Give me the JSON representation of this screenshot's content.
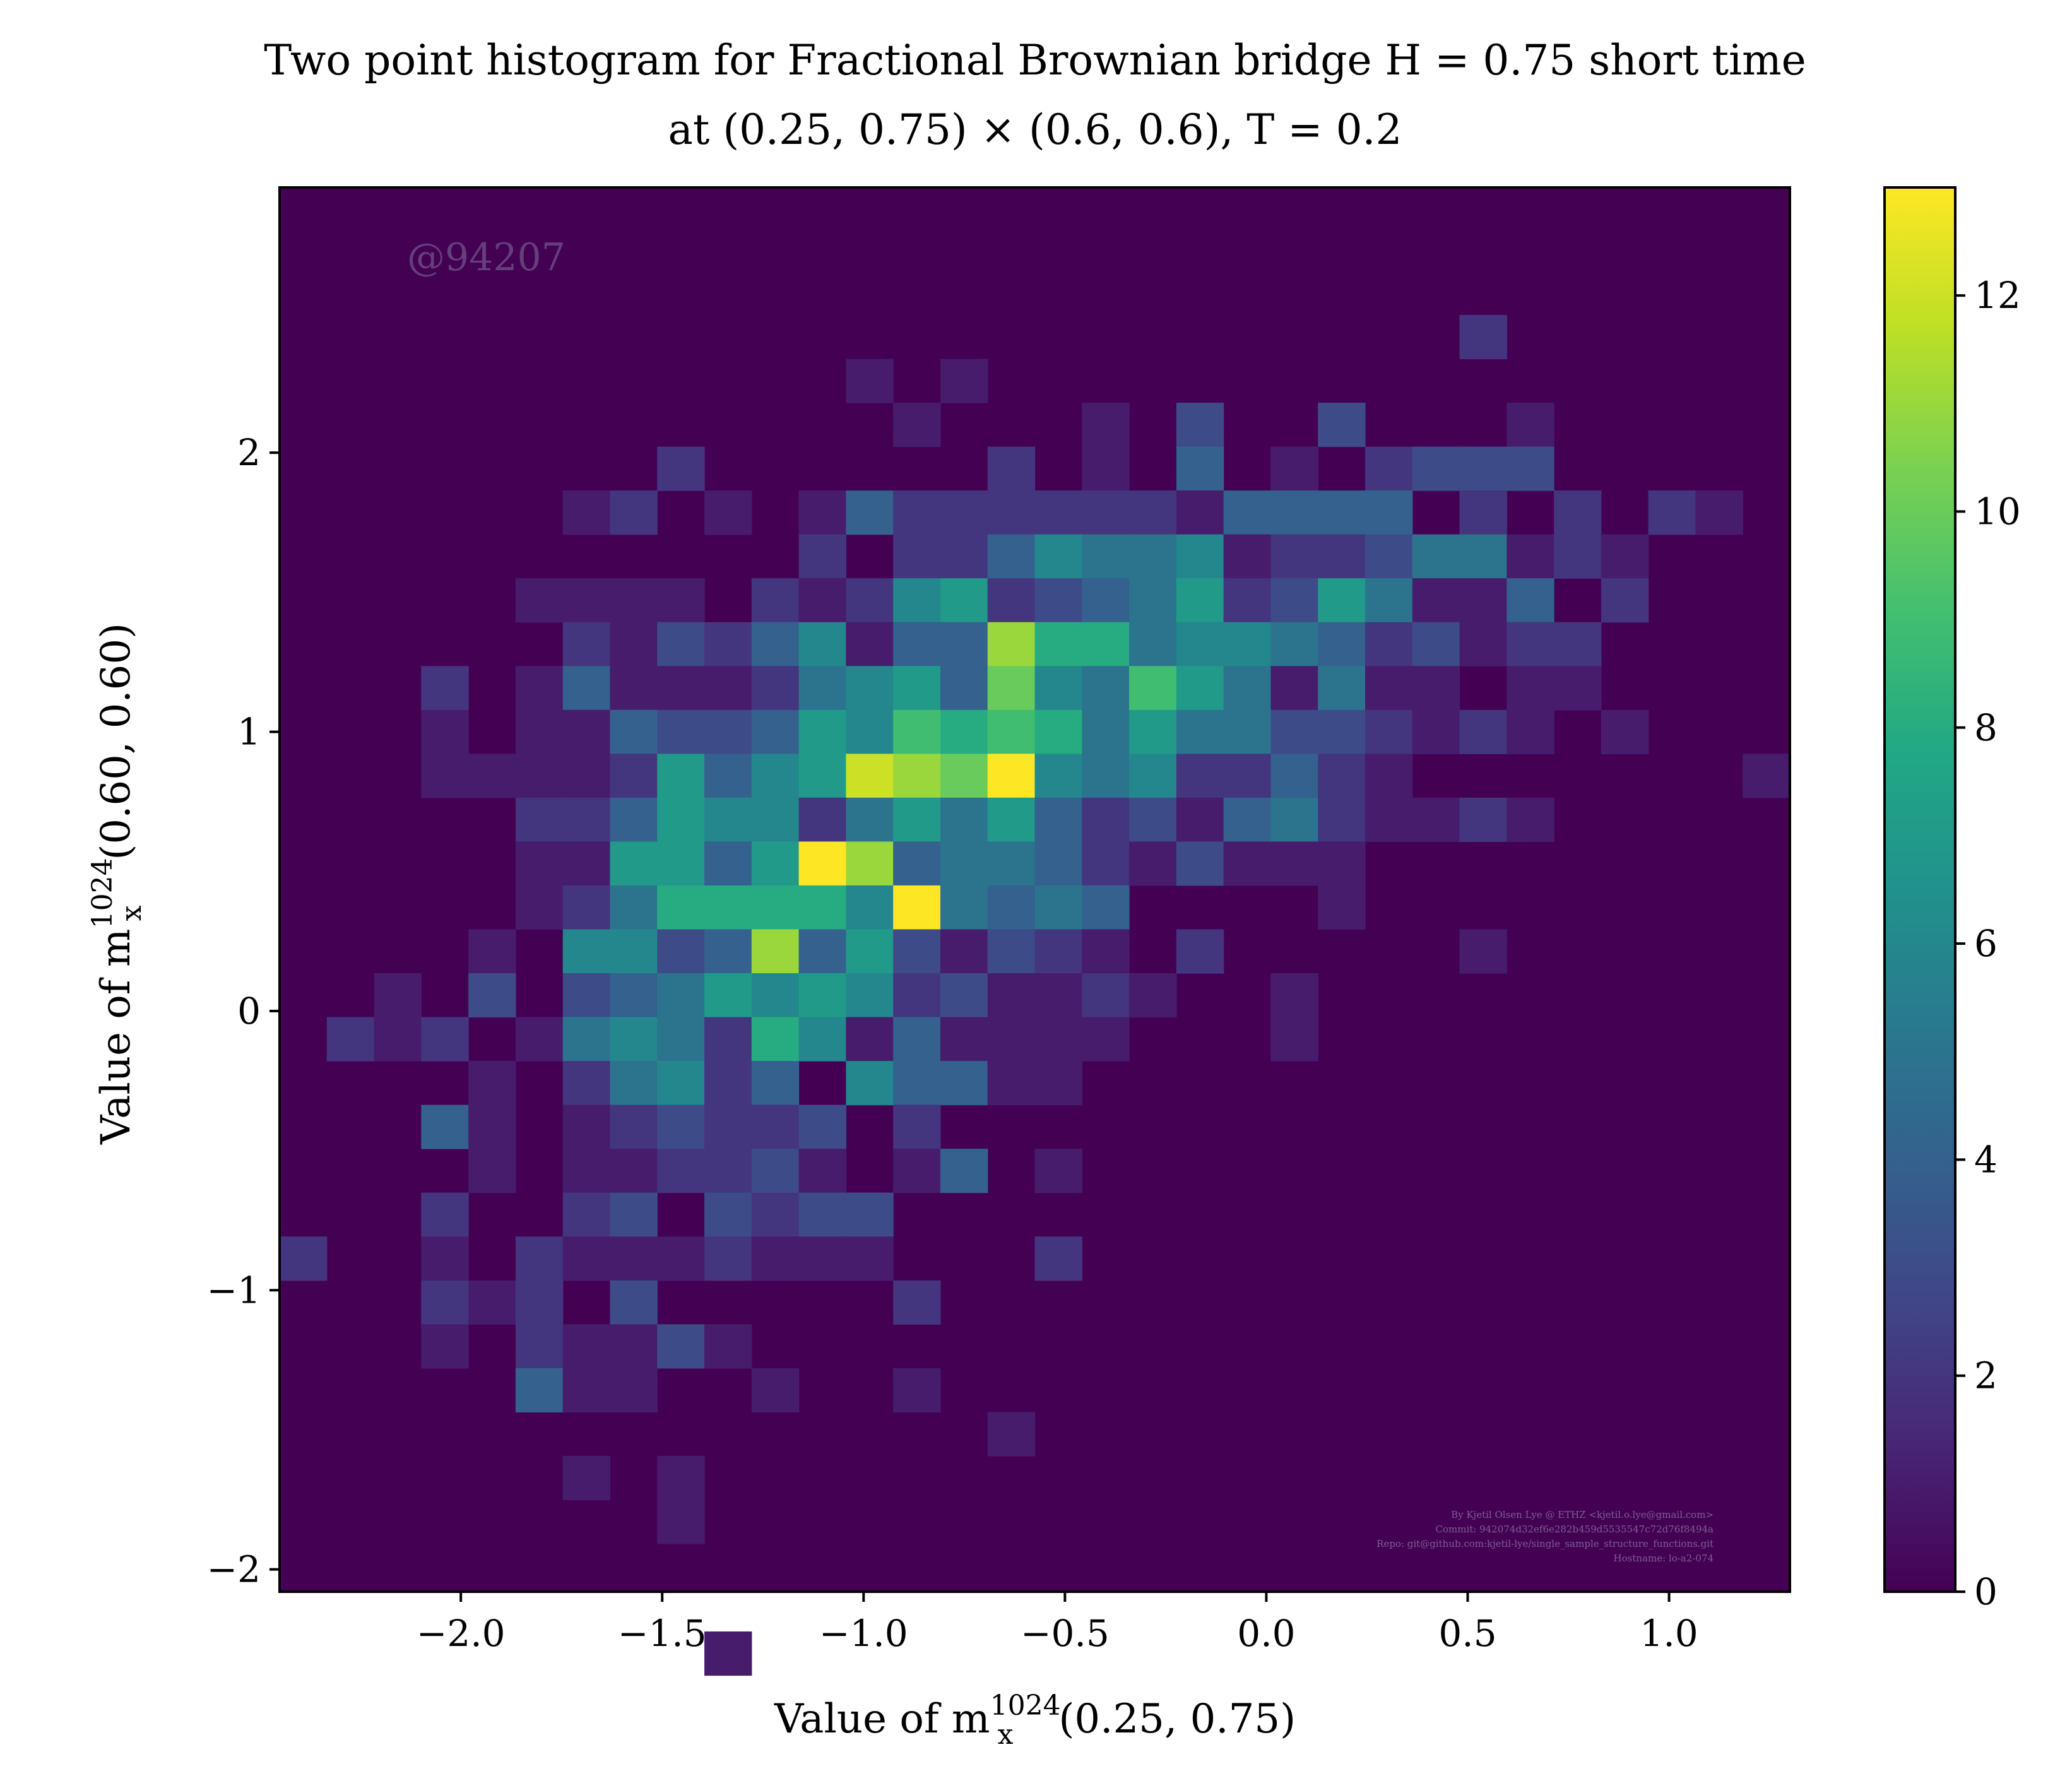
{
  "chart_data": {
    "type": "heatmap",
    "title_lines": [
      "Two point histogram for Fractional Brownian bridge H = 0.75 short time",
      "at (0.25, 0.75) × (0.6, 0.6), T = 0.2"
    ],
    "xlabel": {
      "prefix": "Value of m",
      "sup": "1024",
      "sub": "x",
      "suffix": "(0.25, 0.75)"
    },
    "ylabel": {
      "prefix": "Value of m",
      "sup": "1024",
      "sub": "x",
      "suffix": "(0.60, 0.60)"
    },
    "xlim": [
      -2.45,
      1.3
    ],
    "ylim": [
      -2.08,
      2.95
    ],
    "x_ticks": [
      {
        "value": -2.0,
        "label": "−2.0"
      },
      {
        "value": -1.5,
        "label": "−1.5"
      },
      {
        "value": -1.0,
        "label": "−1.0"
      },
      {
        "value": -0.5,
        "label": "−0.5"
      },
      {
        "value": 0.0,
        "label": "0.0"
      },
      {
        "value": 0.5,
        "label": "0.5"
      },
      {
        "value": 1.0,
        "label": "1.0"
      }
    ],
    "y_ticks": [
      {
        "value": -2,
        "label": "−2"
      },
      {
        "value": -1,
        "label": "−1"
      },
      {
        "value": 0,
        "label": "0"
      },
      {
        "value": 1,
        "label": "1"
      },
      {
        "value": 2,
        "label": "2"
      }
    ],
    "bins": 32,
    "x_edges_range": [
      -2.45,
      1.3
    ],
    "y_edges_range": [
      -2.08,
      2.95
    ],
    "colorbar": {
      "min": 0,
      "max": 13,
      "ticks": [
        {
          "value": 0,
          "label": "0"
        },
        {
          "value": 2,
          "label": "2"
        },
        {
          "value": 4,
          "label": "4"
        },
        {
          "value": 6,
          "label": "6"
        },
        {
          "value": 8,
          "label": "8"
        },
        {
          "value": 10,
          "label": "10"
        },
        {
          "value": 12,
          "label": "12"
        }
      ],
      "colormap": "viridis"
    },
    "cells": [
      [
        25,
        9,
        2
      ],
      [
        14,
        8,
        1
      ],
      [
        12,
        8,
        1
      ],
      [
        13,
        7,
        1
      ],
      [
        17,
        7,
        1
      ],
      [
        19,
        7,
        3
      ],
      [
        22,
        7,
        3
      ],
      [
        26,
        7,
        1
      ],
      [
        8,
        6,
        2
      ],
      [
        15,
        6,
        2
      ],
      [
        17,
        6,
        1
      ],
      [
        19,
        6,
        4
      ],
      [
        21,
        6,
        1
      ],
      [
        23,
        6,
        2
      ],
      [
        24,
        6,
        3
      ],
      [
        25,
        6,
        3
      ],
      [
        26,
        6,
        3
      ],
      [
        6,
        5,
        1
      ],
      [
        7,
        5,
        2
      ],
      [
        9,
        5,
        1
      ],
      [
        11,
        5,
        1
      ],
      [
        12,
        5,
        4
      ],
      [
        13,
        5,
        2
      ],
      [
        14,
        5,
        2
      ],
      [
        15,
        5,
        2
      ],
      [
        16,
        5,
        2
      ],
      [
        17,
        5,
        2
      ],
      [
        18,
        5,
        2
      ],
      [
        19,
        5,
        1
      ],
      [
        20,
        5,
        4
      ],
      [
        21,
        5,
        4
      ],
      [
        22,
        5,
        4
      ],
      [
        23,
        5,
        4
      ],
      [
        25,
        5,
        2
      ],
      [
        27,
        5,
        2
      ],
      [
        29,
        5,
        2
      ],
      [
        30,
        5,
        1
      ],
      [
        11,
        4,
        2
      ],
      [
        13,
        4,
        2
      ],
      [
        14,
        4,
        2
      ],
      [
        15,
        4,
        4
      ],
      [
        16,
        4,
        6
      ],
      [
        17,
        4,
        5
      ],
      [
        18,
        4,
        5
      ],
      [
        19,
        4,
        6
      ],
      [
        20,
        4,
        1
      ],
      [
        21,
        4,
        2
      ],
      [
        22,
        4,
        2
      ],
      [
        23,
        4,
        3
      ],
      [
        24,
        4,
        5
      ],
      [
        25,
        4,
        5
      ],
      [
        26,
        4,
        1
      ],
      [
        27,
        4,
        2
      ],
      [
        28,
        4,
        1
      ],
      [
        5,
        3,
        1
      ],
      [
        6,
        3,
        1
      ],
      [
        7,
        3,
        1
      ],
      [
        8,
        3,
        1
      ],
      [
        10,
        3,
        2
      ],
      [
        11,
        3,
        1
      ],
      [
        12,
        3,
        2
      ],
      [
        13,
        3,
        6
      ],
      [
        14,
        3,
        7
      ],
      [
        15,
        3,
        2
      ],
      [
        16,
        3,
        3
      ],
      [
        17,
        3,
        4
      ],
      [
        18,
        3,
        5
      ],
      [
        19,
        3,
        7
      ],
      [
        20,
        3,
        2
      ],
      [
        21,
        3,
        3
      ],
      [
        22,
        3,
        7
      ],
      [
        23,
        3,
        5
      ],
      [
        24,
        3,
        1
      ],
      [
        25,
        3,
        1
      ],
      [
        26,
        3,
        4
      ],
      [
        28,
        3,
        2
      ],
      [
        6,
        2,
        2
      ],
      [
        7,
        2,
        1
      ],
      [
        8,
        2,
        3
      ],
      [
        9,
        2,
        2
      ],
      [
        10,
        2,
        4
      ],
      [
        11,
        2,
        6
      ],
      [
        12,
        2,
        1
      ],
      [
        13,
        2,
        4
      ],
      [
        14,
        2,
        4
      ],
      [
        15,
        2,
        11
      ],
      [
        16,
        2,
        8
      ],
      [
        17,
        2,
        8
      ],
      [
        18,
        2,
        5
      ],
      [
        19,
        2,
        6
      ],
      [
        20,
        2,
        6
      ],
      [
        21,
        2,
        5
      ],
      [
        22,
        2,
        4
      ],
      [
        23,
        2,
        2
      ],
      [
        24,
        2,
        3
      ],
      [
        25,
        2,
        1
      ],
      [
        26,
        2,
        2
      ],
      [
        27,
        2,
        2
      ],
      [
        3,
        1,
        2
      ],
      [
        5,
        1,
        1
      ],
      [
        6,
        1,
        4
      ],
      [
        7,
        1,
        1
      ],
      [
        8,
        1,
        1
      ],
      [
        9,
        1,
        1
      ],
      [
        10,
        1,
        2
      ],
      [
        11,
        1,
        5
      ],
      [
        12,
        1,
        6
      ],
      [
        13,
        1,
        7
      ],
      [
        14,
        1,
        4
      ],
      [
        15,
        1,
        10
      ],
      [
        16,
        1,
        6
      ],
      [
        17,
        1,
        5
      ],
      [
        18,
        1,
        9
      ],
      [
        19,
        1,
        7
      ],
      [
        20,
        1,
        5
      ],
      [
        21,
        1,
        1
      ],
      [
        22,
        1,
        5
      ],
      [
        23,
        1,
        1
      ],
      [
        24,
        1,
        1
      ],
      [
        26,
        1,
        1
      ],
      [
        27,
        1,
        1
      ],
      [
        3,
        0,
        1
      ],
      [
        5,
        0,
        1
      ],
      [
        6,
        0,
        1
      ],
      [
        7,
        0,
        4
      ],
      [
        8,
        0,
        3
      ],
      [
        9,
        0,
        3
      ],
      [
        10,
        0,
        4
      ],
      [
        11,
        0,
        7
      ],
      [
        12,
        0,
        6
      ],
      [
        13,
        0,
        9
      ],
      [
        14,
        0,
        8
      ],
      [
        15,
        0,
        9
      ],
      [
        16,
        0,
        8
      ],
      [
        17,
        0,
        5
      ],
      [
        18,
        0,
        7
      ],
      [
        19,
        0,
        5
      ],
      [
        20,
        0,
        5
      ],
      [
        21,
        0,
        3
      ],
      [
        22,
        0,
        3
      ],
      [
        23,
        0,
        2
      ],
      [
        24,
        0,
        1
      ],
      [
        25,
        0,
        2
      ],
      [
        26,
        0,
        1
      ],
      [
        28,
        0,
        1
      ],
      [
        3,
        -1,
        1
      ],
      [
        4,
        -1,
        1
      ],
      [
        5,
        -1,
        1
      ],
      [
        6,
        -1,
        1
      ],
      [
        7,
        -1,
        2
      ],
      [
        8,
        -1,
        7
      ],
      [
        9,
        -1,
        4
      ],
      [
        10,
        -1,
        6
      ],
      [
        11,
        -1,
        7
      ],
      [
        12,
        -1,
        12
      ],
      [
        13,
        -1,
        11
      ],
      [
        14,
        -1,
        10
      ],
      [
        15,
        -1,
        13
      ],
      [
        16,
        -1,
        6
      ],
      [
        17,
        -1,
        5
      ],
      [
        18,
        -1,
        6
      ],
      [
        19,
        -1,
        2
      ],
      [
        20,
        -1,
        2
      ],
      [
        21,
        -1,
        4
      ],
      [
        22,
        -1,
        2
      ],
      [
        23,
        -1,
        1
      ],
      [
        31,
        -1,
        1
      ],
      [
        5,
        -2,
        2
      ],
      [
        6,
        -2,
        2
      ],
      [
        7,
        -2,
        4
      ],
      [
        8,
        -2,
        7
      ],
      [
        9,
        -2,
        6
      ],
      [
        10,
        -2,
        6
      ],
      [
        11,
        -2,
        2
      ],
      [
        12,
        -2,
        5
      ],
      [
        13,
        -2,
        7
      ],
      [
        14,
        -2,
        5
      ],
      [
        15,
        -2,
        7
      ],
      [
        16,
        -2,
        4
      ],
      [
        17,
        -2,
        2
      ],
      [
        18,
        -2,
        3
      ],
      [
        19,
        -2,
        1
      ],
      [
        20,
        -2,
        4
      ],
      [
        21,
        -2,
        5
      ],
      [
        22,
        -2,
        2
      ],
      [
        23,
        -2,
        1
      ],
      [
        24,
        -2,
        1
      ],
      [
        25,
        -2,
        2
      ],
      [
        26,
        -2,
        1
      ],
      [
        5,
        -3,
        1
      ],
      [
        6,
        -3,
        1
      ],
      [
        7,
        -3,
        7
      ],
      [
        8,
        -3,
        7
      ],
      [
        9,
        -3,
        4
      ],
      [
        10,
        -3,
        7
      ],
      [
        11,
        -3,
        13
      ],
      [
        12,
        -3,
        11
      ],
      [
        13,
        -3,
        4
      ],
      [
        14,
        -3,
        5
      ],
      [
        15,
        -3,
        5
      ],
      [
        16,
        -3,
        4
      ],
      [
        17,
        -3,
        2
      ],
      [
        18,
        -3,
        1
      ],
      [
        19,
        -3,
        3
      ],
      [
        20,
        -3,
        1
      ],
      [
        21,
        -3,
        1
      ],
      [
        22,
        -3,
        1
      ],
      [
        5,
        -4,
        1
      ],
      [
        6,
        -4,
        2
      ],
      [
        7,
        -4,
        5
      ],
      [
        8,
        -4,
        8
      ],
      [
        9,
        -4,
        8
      ],
      [
        10,
        -4,
        8
      ],
      [
        11,
        -4,
        8
      ],
      [
        12,
        -4,
        6
      ],
      [
        13,
        -4,
        13
      ],
      [
        14,
        -4,
        5
      ],
      [
        15,
        -4,
        4
      ],
      [
        16,
        -4,
        5
      ],
      [
        17,
        -4,
        4
      ],
      [
        22,
        -4,
        1
      ],
      [
        4,
        -5,
        1
      ],
      [
        6,
        -5,
        6
      ],
      [
        7,
        -5,
        6
      ],
      [
        8,
        -5,
        3
      ],
      [
        9,
        -5,
        4
      ],
      [
        10,
        -5,
        11
      ],
      [
        11,
        -5,
        4
      ],
      [
        12,
        -5,
        7
      ],
      [
        13,
        -5,
        3
      ],
      [
        14,
        -5,
        1
      ],
      [
        15,
        -5,
        3
      ],
      [
        16,
        -5,
        2
      ],
      [
        17,
        -5,
        1
      ],
      [
        19,
        -5,
        2
      ],
      [
        25,
        -5,
        1
      ],
      [
        2,
        -6,
        1
      ],
      [
        4,
        -6,
        3
      ],
      [
        6,
        -6,
        3
      ],
      [
        7,
        -6,
        4
      ],
      [
        8,
        -6,
        5
      ],
      [
        9,
        -6,
        7
      ],
      [
        10,
        -6,
        6
      ],
      [
        11,
        -6,
        7
      ],
      [
        12,
        -6,
        6
      ],
      [
        13,
        -6,
        2
      ],
      [
        14,
        -6,
        3
      ],
      [
        15,
        -6,
        1
      ],
      [
        16,
        -6,
        1
      ],
      [
        17,
        -6,
        2
      ],
      [
        18,
        -6,
        1
      ],
      [
        21,
        -6,
        1
      ],
      [
        1,
        -7,
        2
      ],
      [
        2,
        -7,
        1
      ],
      [
        3,
        -7,
        2
      ],
      [
        5,
        -7,
        1
      ],
      [
        6,
        -7,
        5
      ],
      [
        7,
        -7,
        6
      ],
      [
        8,
        -7,
        5
      ],
      [
        9,
        -7,
        2
      ],
      [
        10,
        -7,
        8
      ],
      [
        11,
        -7,
        6
      ],
      [
        12,
        -7,
        1
      ],
      [
        13,
        -7,
        4
      ],
      [
        14,
        -7,
        1
      ],
      [
        15,
        -7,
        1
      ],
      [
        16,
        -7,
        1
      ],
      [
        17,
        -7,
        1
      ],
      [
        21,
        -7,
        1
      ],
      [
        4,
        -8,
        1
      ],
      [
        6,
        -8,
        2
      ],
      [
        7,
        -8,
        5
      ],
      [
        8,
        -8,
        6
      ],
      [
        9,
        -8,
        2
      ],
      [
        10,
        -8,
        4
      ],
      [
        11,
        -8,
        0
      ],
      [
        12,
        -8,
        6
      ],
      [
        13,
        -8,
        4
      ],
      [
        14,
        -8,
        4
      ],
      [
        15,
        -8,
        1
      ],
      [
        16,
        -8,
        1
      ],
      [
        3,
        -9,
        4
      ],
      [
        4,
        -9,
        1
      ],
      [
        6,
        -9,
        1
      ],
      [
        7,
        -9,
        2
      ],
      [
        8,
        -9,
        3
      ],
      [
        9,
        -9,
        2
      ],
      [
        10,
        -9,
        2
      ],
      [
        11,
        -9,
        3
      ],
      [
        13,
        -9,
        2
      ],
      [
        4,
        -10,
        1
      ],
      [
        6,
        -10,
        1
      ],
      [
        7,
        -10,
        1
      ],
      [
        8,
        -10,
        2
      ],
      [
        9,
        -10,
        2
      ],
      [
        10,
        -10,
        3
      ],
      [
        11,
        -10,
        1
      ],
      [
        13,
        -10,
        1
      ],
      [
        14,
        -10,
        4
      ],
      [
        16,
        -10,
        1
      ],
      [
        3,
        -11,
        2
      ],
      [
        6,
        -11,
        2
      ],
      [
        7,
        -11,
        3
      ],
      [
        9,
        -11,
        3
      ],
      [
        10,
        -11,
        2
      ],
      [
        11,
        -11,
        3
      ],
      [
        12,
        -11,
        3
      ],
      [
        0,
        -12,
        2
      ],
      [
        3,
        -12,
        1
      ],
      [
        5,
        -12,
        2
      ],
      [
        6,
        -12,
        1
      ],
      [
        7,
        -12,
        1
      ],
      [
        8,
        -12,
        1
      ],
      [
        9,
        -12,
        2
      ],
      [
        10,
        -12,
        1
      ],
      [
        11,
        -12,
        1
      ],
      [
        12,
        -12,
        1
      ],
      [
        16,
        -12,
        2
      ],
      [
        3,
        -13,
        2
      ],
      [
        4,
        -13,
        1
      ],
      [
        5,
        -13,
        2
      ],
      [
        7,
        -13,
        3
      ],
      [
        13,
        -13,
        2
      ],
      [
        3,
        -14,
        1
      ],
      [
        5,
        -14,
        2
      ],
      [
        6,
        -14,
        1
      ],
      [
        7,
        -14,
        1
      ],
      [
        8,
        -14,
        3
      ],
      [
        9,
        -14,
        1
      ],
      [
        5,
        -15,
        4
      ],
      [
        6,
        -15,
        1
      ],
      [
        7,
        -15,
        1
      ],
      [
        10,
        -15,
        1
      ],
      [
        13,
        -15,
        1
      ],
      [
        15,
        -16,
        1
      ],
      [
        6,
        -17,
        1
      ],
      [
        8,
        -17,
        1
      ],
      [
        8,
        -18,
        1
      ],
      [
        9,
        -21,
        1
      ]
    ]
  },
  "watermark": "@94207",
  "credits": [
    "By Kjetil Olsen Lye @ ETHZ <kjetil.o.lye@gmail.com>",
    "Commit: 942074d32ef6e282b459d5535547c72d76f8494a",
    "Repo: git@github.com:kjetil-lye/single_sample_structure_functions.git",
    "Hostname: lo-a2-074"
  ]
}
